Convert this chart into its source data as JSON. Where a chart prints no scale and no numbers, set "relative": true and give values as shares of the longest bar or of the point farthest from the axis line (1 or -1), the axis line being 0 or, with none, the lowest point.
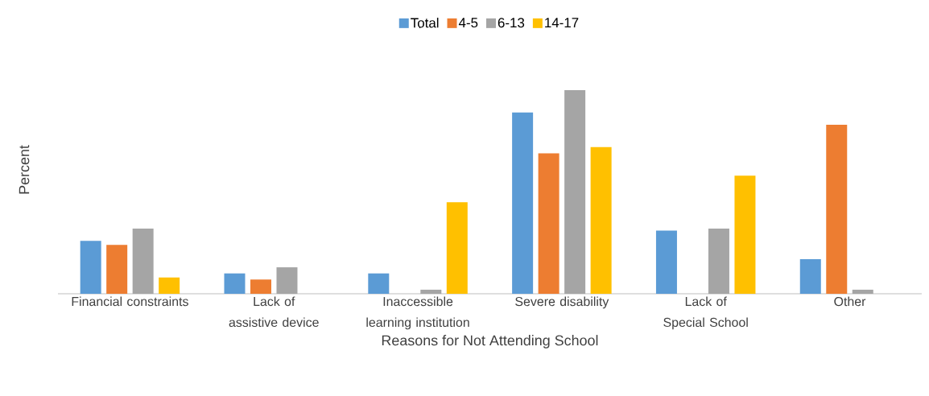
{
  "chart_data": {
    "type": "bar",
    "relative": true,
    "xlabel": "Reasons for Not Attending School",
    "ylabel": "Percent",
    "categories": [
      "Financial constraints",
      "Lack of assistive device",
      "Inaccessible learning institution",
      "Severe disability",
      "Lack of Special School",
      "Other"
    ],
    "series": [
      {
        "name": "Total",
        "color": "#5b9bd5",
        "values": [
          0.26,
          0.1,
          0.1,
          0.89,
          0.31,
          0.17
        ]
      },
      {
        "name": "4-5",
        "color": "#ed7d31",
        "values": [
          0.24,
          0.07,
          null,
          0.69,
          null,
          0.83
        ]
      },
      {
        "name": "6-13",
        "color": "#a5a5a5",
        "values": [
          0.32,
          0.13,
          0.02,
          1.0,
          0.32,
          0.02
        ]
      },
      {
        "name": "14-17",
        "color": "#ffc000",
        "values": [
          0.08,
          null,
          0.45,
          0.72,
          0.58,
          null
        ]
      }
    ],
    "legend": "top"
  }
}
